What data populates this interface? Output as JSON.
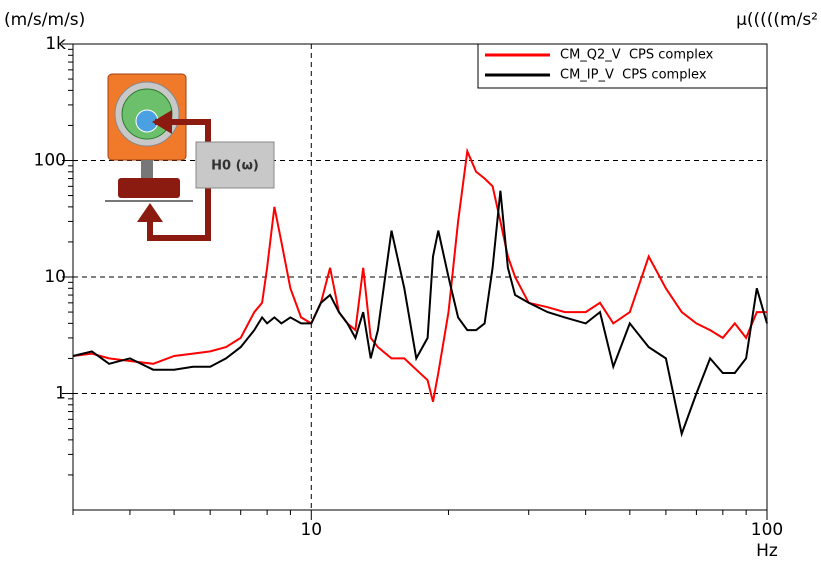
{
  "chart_data": {
    "type": "line",
    "y_label": "(m/s/m/s)",
    "y2_label": "μ(((((m/s²",
    "x_label": "Hz",
    "inset_label": "H0 (ω)",
    "xscale": "log",
    "yscale": "log",
    "grid": true,
    "legend": "upper right",
    "xlim": [
      3,
      100
    ],
    "ylim": [
      0.1,
      1000
    ],
    "xticks": [
      10,
      100
    ],
    "yticks": [
      1,
      10,
      100,
      {
        "value": 1000,
        "label": "1k"
      }
    ],
    "x_minor_ticks": [
      3,
      4,
      5,
      6,
      7,
      8,
      9,
      20,
      30,
      40,
      50,
      60,
      70,
      80,
      90
    ],
    "y_minor_ticks": [
      0.2,
      0.3,
      0.4,
      0.5,
      0.6,
      0.7,
      0.8,
      0.9,
      2,
      3,
      4,
      5,
      6,
      7,
      8,
      9,
      20,
      30,
      40,
      50,
      60,
      70,
      80,
      90,
      200,
      300,
      400,
      500,
      600,
      700,
      800,
      900
    ],
    "x": [
      3,
      3.3,
      3.6,
      4,
      4.5,
      5,
      5.5,
      6,
      6.5,
      7,
      7.5,
      7.8,
      8,
      8.3,
      8.6,
      9,
      9.5,
      10,
      10.5,
      11,
      11.5,
      12,
      12.5,
      13,
      13.5,
      14,
      15,
      16,
      17,
      18,
      18.5,
      19,
      20,
      21,
      22,
      23,
      24,
      25,
      26,
      27,
      28,
      30,
      33,
      36,
      40,
      43,
      46,
      50,
      55,
      60,
      65,
      70,
      75,
      80,
      85,
      90,
      95,
      100
    ],
    "series": [
      {
        "name": "CM_Q2_V  CPS complex",
        "color": "#ff0000",
        "values": [
          2.1,
          2.2,
          2.0,
          1.9,
          1.8,
          2.1,
          2.2,
          2.3,
          2.5,
          3.0,
          5,
          6,
          12,
          40,
          20,
          8,
          4.5,
          4,
          6,
          12,
          5,
          4,
          3.5,
          12,
          3,
          2.5,
          2.0,
          2.0,
          1.6,
          1.3,
          0.85,
          1.5,
          5,
          30,
          120,
          80,
          70,
          60,
          30,
          15,
          10,
          6,
          5.5,
          5,
          5,
          6,
          4,
          5,
          15,
          8,
          5,
          4,
          3.5,
          3,
          4,
          3,
          5,
          5
        ]
      },
      {
        "name": "CM_IP_V  CPS complex",
        "color": "#000000",
        "values": [
          2.1,
          2.3,
          1.8,
          2.0,
          1.6,
          1.6,
          1.7,
          1.7,
          2.0,
          2.5,
          3.5,
          4.5,
          4,
          4.5,
          4,
          4.5,
          4,
          4,
          6,
          7,
          5,
          4,
          3,
          5,
          2,
          3.5,
          25,
          8,
          2,
          3,
          15,
          25,
          10,
          4.5,
          3.5,
          3.5,
          4,
          12,
          55,
          12,
          7,
          6,
          5,
          4.5,
          4,
          5,
          1.7,
          4,
          2.5,
          2.0,
          0.45,
          1.0,
          2.0,
          1.5,
          1.5,
          2.0,
          8,
          4
        ]
      }
    ]
  }
}
